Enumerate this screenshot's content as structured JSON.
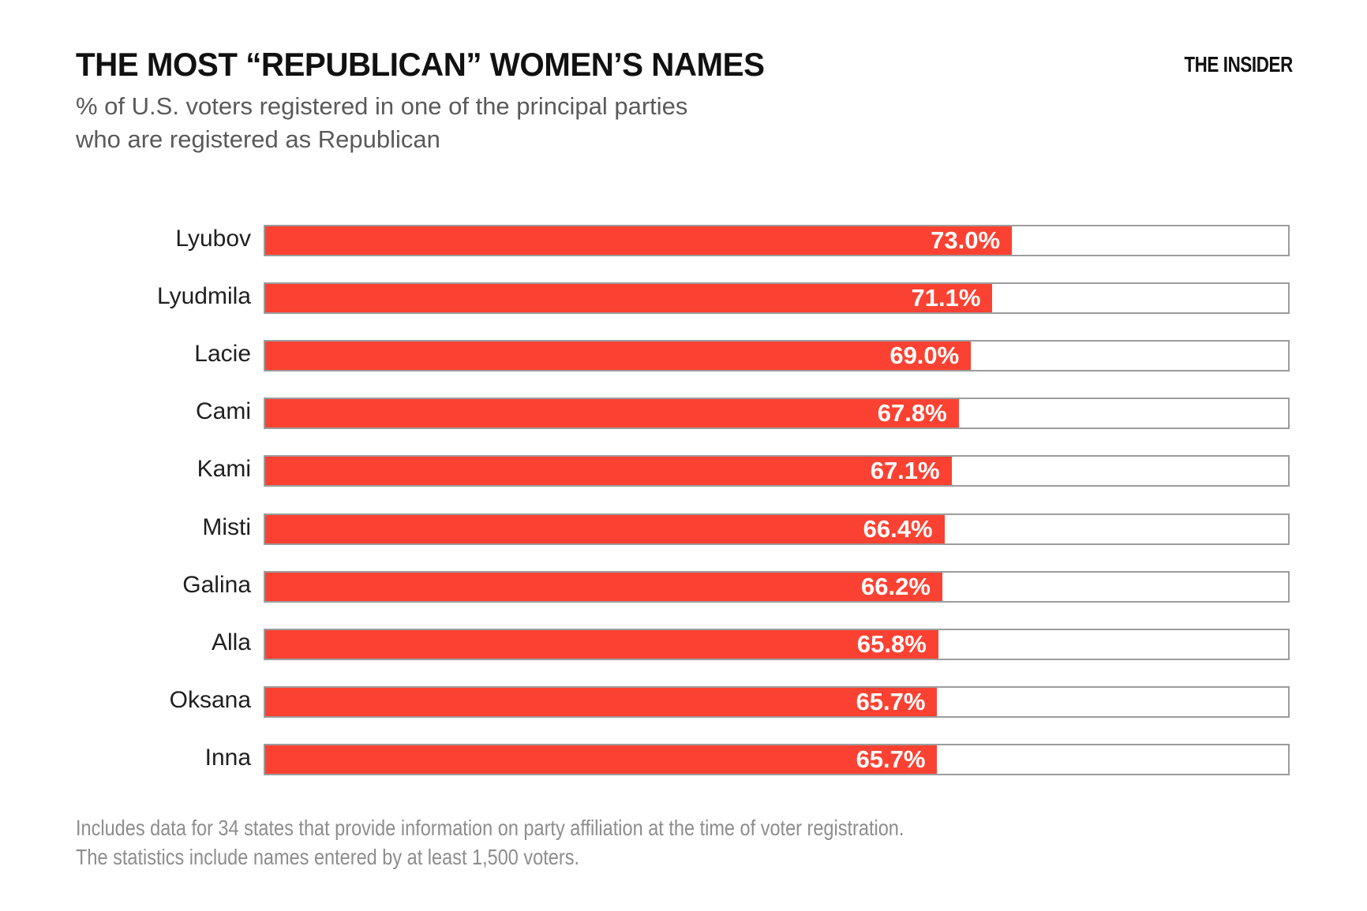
{
  "header": {
    "title": "THE MOST “REPUBLICAN” WOMEN’S NAMES",
    "logo": "THE INSIDER"
  },
  "subtitle": {
    "line1": "% of U.S. voters registered in one of the principal parties",
    "line2": "who are registered as Republican"
  },
  "chart_data": {
    "type": "bar",
    "orientation": "horizontal",
    "title": "THE MOST “REPUBLICAN” WOMEN’S NAMES",
    "subtitle": "% of U.S. voters registered in one of the principal parties who are registered as Republican",
    "categories": [
      "Lyubov",
      "Lyudmila",
      "Lacie",
      "Cami",
      "Kami",
      "Misti",
      "Galina",
      "Alla",
      "Oksana",
      "Inna"
    ],
    "values": [
      73.0,
      71.1,
      69.0,
      67.8,
      67.1,
      66.4,
      66.2,
      65.8,
      65.7,
      65.7
    ],
    "value_labels": [
      "73.0%",
      "71.1%",
      "69.0%",
      "67.8%",
      "67.1%",
      "66.4%",
      "66.2%",
      "65.8%",
      "65.7%",
      "65.7%"
    ],
    "xlim": [
      0,
      100
    ],
    "grid": false,
    "legend": false,
    "value_label_position": "inside-end",
    "bar_color": "#fb4232",
    "track_fill": "#ffffff",
    "track_border_color": "#9c9c9c"
  },
  "footnote": {
    "line1": "Includes data for 34 states that provide information on party affiliation at the time of voter registration.",
    "line2": "The statistics include names entered by at least 1,500 voters."
  }
}
